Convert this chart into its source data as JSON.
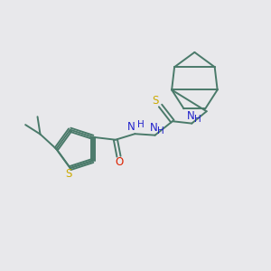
{
  "bg_color": "#e8e8eb",
  "bond_color": "#4a7a6a",
  "sulfur_color": "#ccaa00",
  "oxygen_color": "#dd2200",
  "nitrogen_color": "#2222cc",
  "figsize": [
    3.0,
    3.0
  ],
  "dpi": 100,
  "xlim": [
    0,
    10
  ],
  "ylim": [
    0,
    10
  ]
}
